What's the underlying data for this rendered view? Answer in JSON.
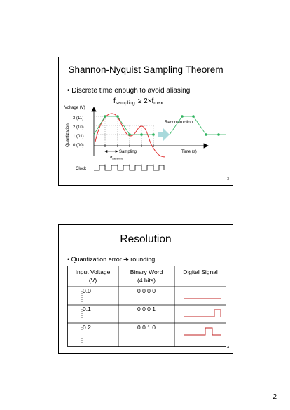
{
  "slide1": {
    "title": "Shannon-Nyquist Sampling Theorem",
    "bullet": "Discrete time enough to avoid aliasing",
    "formula": {
      "f": "f",
      "sub_sampling": "sampling",
      "relation": "≥ 2×f",
      "sub_max": "max"
    },
    "axis": {
      "ylabel": "Voltage (V)",
      "side_label": "Quantization",
      "xlabel": "Time (s)"
    },
    "levels": [
      "3 (11)",
      "2 (10)",
      "1 (01)",
      "0 (00)"
    ],
    "reconstruction_label": "Reconstruction",
    "sampling_label": "Sampling",
    "period_label": {
      "prefix": "1/f",
      "sub": "sampling"
    },
    "clock_label": "Clock",
    "slide_number": "3",
    "colors": {
      "signal": "#e03030",
      "samples": "#2db35d",
      "arrow": "#a9d9dc"
    }
  },
  "slide2": {
    "title": "Resolution",
    "bullet": {
      "text": "Quantization error",
      "arrow": "➔",
      "rest": "rounding"
    },
    "table": {
      "headers": [
        [
          "Input Voltage",
          "(V)"
        ],
        [
          "Binary Word",
          "(4 bits)"
        ],
        [
          "Digital Signal"
        ]
      ],
      "rows": [
        {
          "voltage": "0.0",
          "word": "0 0 0 0"
        },
        {
          "voltage": "0.1",
          "word": "0 0 0 1"
        },
        {
          "voltage": "0.2",
          "word": "0 0 1 0"
        }
      ]
    },
    "slide_number": "4"
  },
  "page_number": "2"
}
